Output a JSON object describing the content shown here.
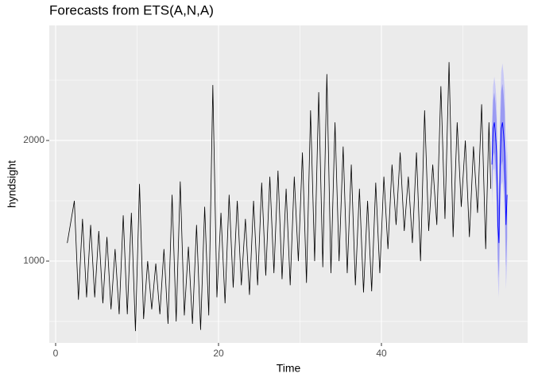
{
  "chart_data": {
    "type": "line",
    "title": "Forecasts from ETS(A,N,A)",
    "x_label": "Time",
    "y_label": "hyndsight",
    "xlim": [
      -0.78,
      57.95
    ],
    "ylim": [
      322,
      2954
    ],
    "xticks": [
      0,
      20,
      40
    ],
    "yticks": [
      1000,
      2000
    ],
    "x_minor": [
      10,
      30,
      50
    ],
    "y_minor": [
      500,
      1500,
      2500
    ],
    "grid": true,
    "color": "#000000",
    "x": [
      1.43,
      2.3,
      2.8,
      3.3,
      3.8,
      4.3,
      4.8,
      5.3,
      5.8,
      6.3,
      6.8,
      7.3,
      7.8,
      8.3,
      8.8,
      9.3,
      9.8,
      10.3,
      10.8,
      11.3,
      11.8,
      12.3,
      12.8,
      13.3,
      13.8,
      14.3,
      14.8,
      15.3,
      15.8,
      16.3,
      16.8,
      17.3,
      17.8,
      18.3,
      18.8,
      19.3,
      19.8,
      20.3,
      20.8,
      21.3,
      21.8,
      22.3,
      22.8,
      23.3,
      23.8,
      24.3,
      24.8,
      25.3,
      25.8,
      26.3,
      26.8,
      27.3,
      27.8,
      28.3,
      28.8,
      29.3,
      29.8,
      30.3,
      30.8,
      31.3,
      31.8,
      32.3,
      32.8,
      33.3,
      33.8,
      34.3,
      34.8,
      35.3,
      35.8,
      36.3,
      36.8,
      37.3,
      37.8,
      38.3,
      38.8,
      39.3,
      39.8,
      40.3,
      40.8,
      41.3,
      41.8,
      42.3,
      42.8,
      43.3,
      43.8,
      44.3,
      44.8,
      45.3,
      45.8,
      46.3,
      46.8,
      47.3,
      47.8,
      48.3,
      48.8,
      49.3,
      49.8,
      50.3,
      50.8,
      51.3,
      51.8,
      52.3,
      52.8,
      53.2,
      53.43
    ],
    "values": [
      1150,
      1500,
      680,
      1350,
      700,
      1300,
      700,
      1250,
      650,
      1200,
      600,
      1100,
      560,
      1380,
      560,
      1400,
      420,
      1640,
      520,
      1000,
      600,
      980,
      560,
      1100,
      480,
      1550,
      500,
      1660,
      550,
      1120,
      480,
      1300,
      430,
      1450,
      550,
      2460,
      700,
      1400,
      650,
      1550,
      780,
      1500,
      800,
      1350,
      720,
      1500,
      800,
      1650,
      880,
      1700,
      900,
      1750,
      850,
      1600,
      800,
      1700,
      1000,
      1900,
      820,
      2250,
      1000,
      2400,
      950,
      2550,
      900,
      2150,
      1000,
      1950,
      900,
      1800,
      800,
      1600,
      740,
      1500,
      750,
      1650,
      900,
      1700,
      1100,
      1800,
      1300,
      1900,
      1250,
      1700,
      1150,
      1900,
      1000,
      2250,
      1250,
      1800,
      1300,
      2450,
      1350,
      2650,
      1200,
      2150,
      1450,
      2000,
      1200,
      1950,
      1400,
      2300,
      1100,
      2150,
      1600
    ],
    "forecast": {
      "color": "#0000ff",
      "band80_color": "#9a9af2",
      "band95_color": "#c9c9f5",
      "x": [
        53.57,
        53.71,
        53.86,
        54.0,
        54.14,
        54.29,
        54.43,
        54.57,
        54.71,
        54.86,
        55.0,
        55.14,
        55.29,
        55.43
      ],
      "mean": [
        1800,
        2100,
        2150,
        2050,
        1900,
        1300,
        1150,
        1800,
        2100,
        2150,
        2050,
        1900,
        1300,
        1550
      ],
      "lo80": [
        1570,
        1870,
        1900,
        1790,
        1630,
        1020,
        860,
        1500,
        1790,
        1830,
        1720,
        1560,
        950,
        1190
      ],
      "hi80": [
        2030,
        2330,
        2400,
        2310,
        2170,
        1580,
        1440,
        2100,
        2410,
        2470,
        2380,
        2240,
        1650,
        1910
      ],
      "lo95": [
        1450,
        1750,
        1770,
        1650,
        1490,
        870,
        700,
        1340,
        1630,
        1660,
        1550,
        1380,
        770,
        1000
      ],
      "hi95": [
        2150,
        2450,
        2530,
        2450,
        2310,
        1730,
        1600,
        2260,
        2570,
        2640,
        2550,
        2420,
        1830,
        2100
      ]
    }
  }
}
